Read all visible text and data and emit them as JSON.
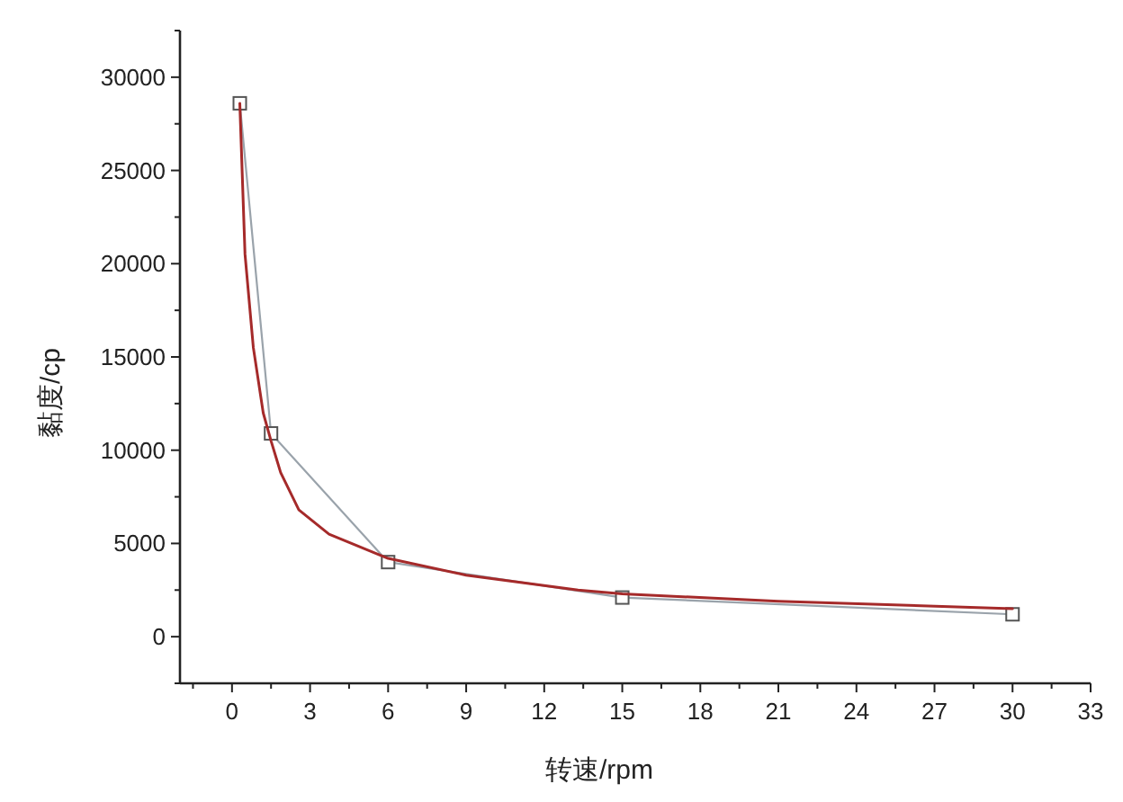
{
  "chart_data": {
    "type": "line",
    "xlabel": "转速/rpm",
    "ylabel": "黏度/cp",
    "xlim": [
      -2,
      33
    ],
    "xticks": [
      0,
      3,
      6,
      9,
      12,
      15,
      18,
      21,
      24,
      27,
      30,
      33
    ],
    "ylim": [
      -2500,
      32500
    ],
    "yticks": [
      0,
      5000,
      10000,
      15000,
      20000,
      25000,
      30000
    ],
    "grid": false,
    "series": [
      {
        "color": "#9aa3ab",
        "marker": "square",
        "x": [
          0.3,
          1.5,
          6,
          15,
          30
        ],
        "values": [
          28600,
          10900,
          4000,
          2100,
          1200
        ]
      },
      {
        "color": "#a52a2a",
        "marker": "none",
        "x": [
          0.3,
          0.5,
          0.82,
          1.2,
          1.5,
          1.87,
          2.57,
          3.73,
          6,
          9,
          13.3,
          15,
          21,
          30
        ],
        "values": [
          28600,
          20500,
          15500,
          12000,
          10500,
          8800,
          6800,
          5500,
          4200,
          3300,
          2500,
          2300,
          1900,
          1500
        ]
      }
    ]
  }
}
